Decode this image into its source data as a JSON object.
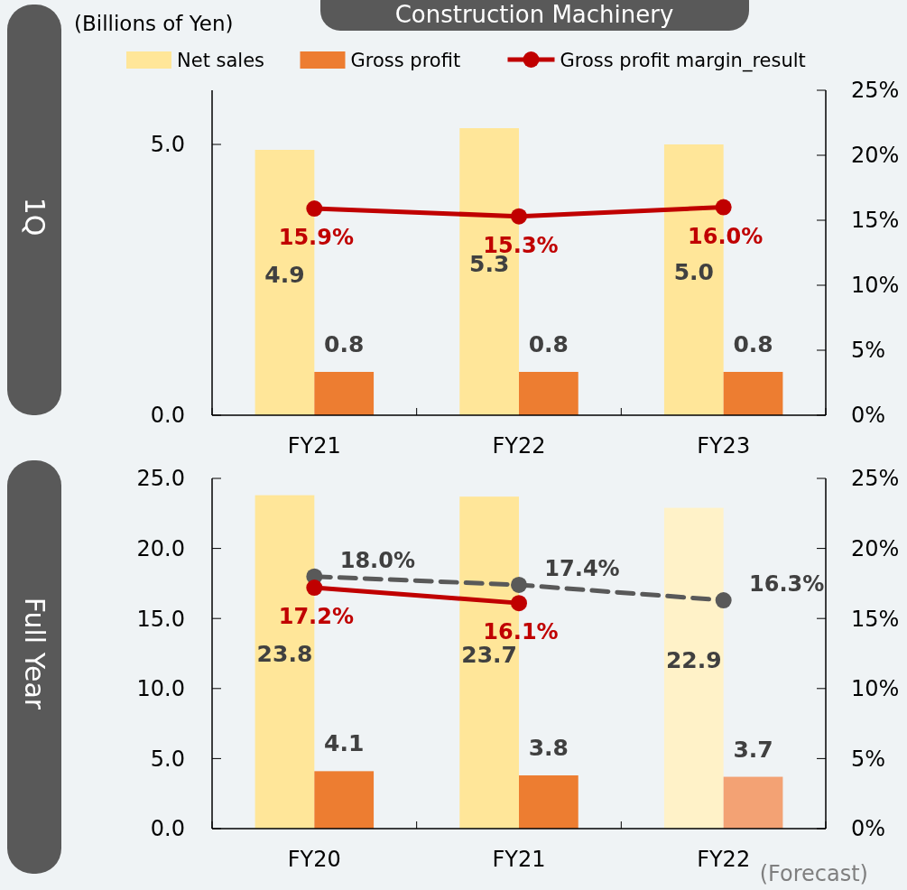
{
  "chart_data": [
    {
      "type": "bar",
      "title": "Construction Machinery",
      "subtitle": "1Q",
      "ylabel": "(Billions of Yen)",
      "categories": [
        "FY21",
        "FY22",
        "FY23"
      ],
      "series": [
        {
          "name": "Net sales",
          "color": "#ffe699",
          "values": [
            4.9,
            5.3,
            5.0
          ],
          "value_labels": [
            "4.9",
            "5.3",
            "5.0"
          ]
        },
        {
          "name": "Gross profit",
          "color": "#ed7d31",
          "values": [
            0.8,
            0.8,
            0.8
          ],
          "value_labels": [
            "0.8",
            "0.8",
            "0.8"
          ]
        },
        {
          "name": "Gross profit margin_result",
          "type": "line",
          "axis": "y2",
          "color": "#c00000",
          "values": [
            15.9,
            15.3,
            16.0
          ],
          "value_labels": [
            "15.9%",
            "15.3%",
            "16.0%"
          ]
        }
      ],
      "ylim": [
        0,
        6
      ],
      "yticks": [
        {
          "value": 0,
          "label": "0.0"
        },
        {
          "value": 5,
          "label": "5.0"
        }
      ],
      "y2lim": [
        0,
        25
      ],
      "y2ticks": [
        {
          "value": 0,
          "label": "0%"
        },
        {
          "value": 5,
          "label": "5%"
        },
        {
          "value": 10,
          "label": "10%"
        },
        {
          "value": 15,
          "label": "15%"
        },
        {
          "value": 20,
          "label": "20%"
        },
        {
          "value": 25,
          "label": "25%"
        }
      ],
      "legend": "top",
      "marker": "circle",
      "line_style": "solid"
    },
    {
      "type": "bar",
      "subtitle": "Full Year",
      "categories": [
        "FY20",
        "FY21",
        "FY22"
      ],
      "annotations": [
        "(Forecast)"
      ],
      "series": [
        {
          "colors": [
            "#ffe699",
            "#ffe699",
            "#fff2c8"
          ],
          "values": [
            23.8,
            23.7,
            22.9
          ],
          "value_labels": [
            "23.8",
            "23.7",
            "22.9"
          ]
        },
        {
          "colors": [
            "#ed7d31",
            "#ed7d31",
            "#f3a274"
          ],
          "values": [
            4.1,
            3.8,
            3.7
          ],
          "value_labels": [
            "4.1",
            "3.8",
            "3.7"
          ]
        },
        {
          "type": "line",
          "axis": "y2",
          "color": "#595959",
          "line_style": "dashed",
          "values": [
            18.0,
            17.4,
            16.3
          ],
          "value_labels": [
            "18.0%",
            "17.4%",
            "16.3%"
          ]
        },
        {
          "type": "line",
          "axis": "y2",
          "color": "#c00000",
          "values": [
            17.2,
            16.1,
            null
          ],
          "value_labels": [
            "17.2%",
            "16.1%",
            null
          ]
        }
      ],
      "ylim": [
        0,
        25
      ],
      "yticks": [
        {
          "value": 0,
          "label": "0.0"
        },
        {
          "value": 5,
          "label": "5.0"
        },
        {
          "value": 10,
          "label": "10.0"
        },
        {
          "value": 15,
          "label": "15.0"
        },
        {
          "value": 20,
          "label": "20.0"
        },
        {
          "value": 25,
          "label": "25.0"
        }
      ],
      "y2lim": [
        0,
        25
      ],
      "y2ticks": [
        {
          "value": 0,
          "label": "0%"
        },
        {
          "value": 5,
          "label": "5%"
        },
        {
          "value": 10,
          "label": "10%"
        },
        {
          "value": 15,
          "label": "15%"
        },
        {
          "value": 20,
          "label": "20%"
        },
        {
          "value": 25,
          "label": "25%"
        }
      ],
      "legend": false,
      "marker": "circle",
      "line_style": "solid"
    }
  ]
}
